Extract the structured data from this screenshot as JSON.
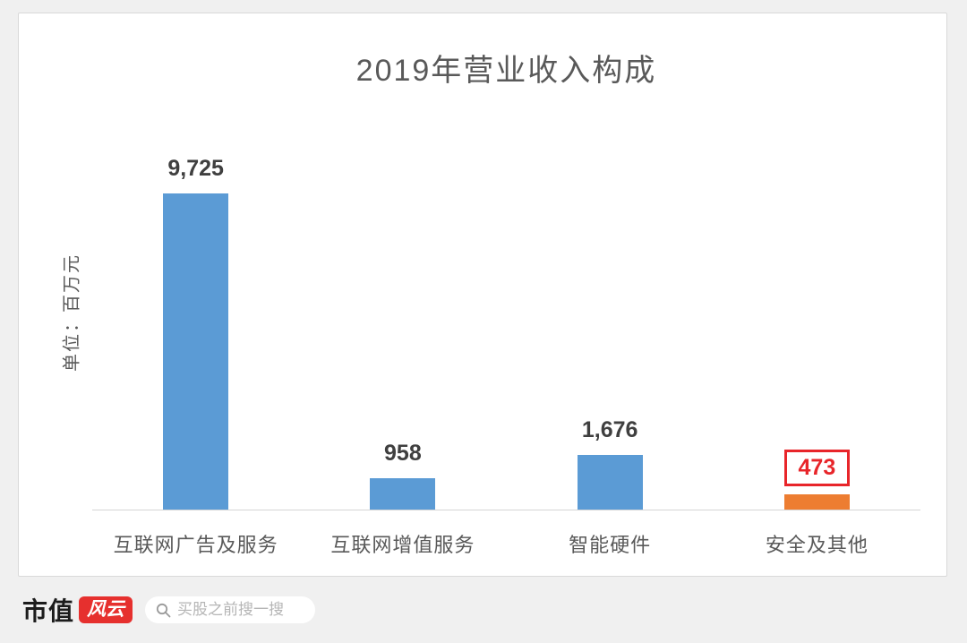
{
  "chart_data": {
    "type": "bar",
    "title": "2019年营业收入构成",
    "ylabel": "单位：百万元",
    "xlabel": "",
    "categories": [
      "互联网广告及服务",
      "互联网增值服务",
      "智能硬件",
      "安全及其他"
    ],
    "values": [
      9725,
      958,
      1676,
      473
    ],
    "value_labels": [
      "9,725",
      "958",
      "1,676",
      "473"
    ],
    "bar_colors": [
      "#5b9bd5",
      "#5b9bd5",
      "#5b9bd5",
      "#ed7d31"
    ],
    "highlight_index": 3,
    "highlight_color": "#e8252a",
    "ylim": [
      0,
      9725
    ],
    "grid": false,
    "legend": false
  },
  "footer": {
    "logo_text": "市值",
    "logo_badge_text": "风云",
    "logo_badge_color": "#e6302e",
    "search_placeholder": "买股之前搜一搜"
  }
}
